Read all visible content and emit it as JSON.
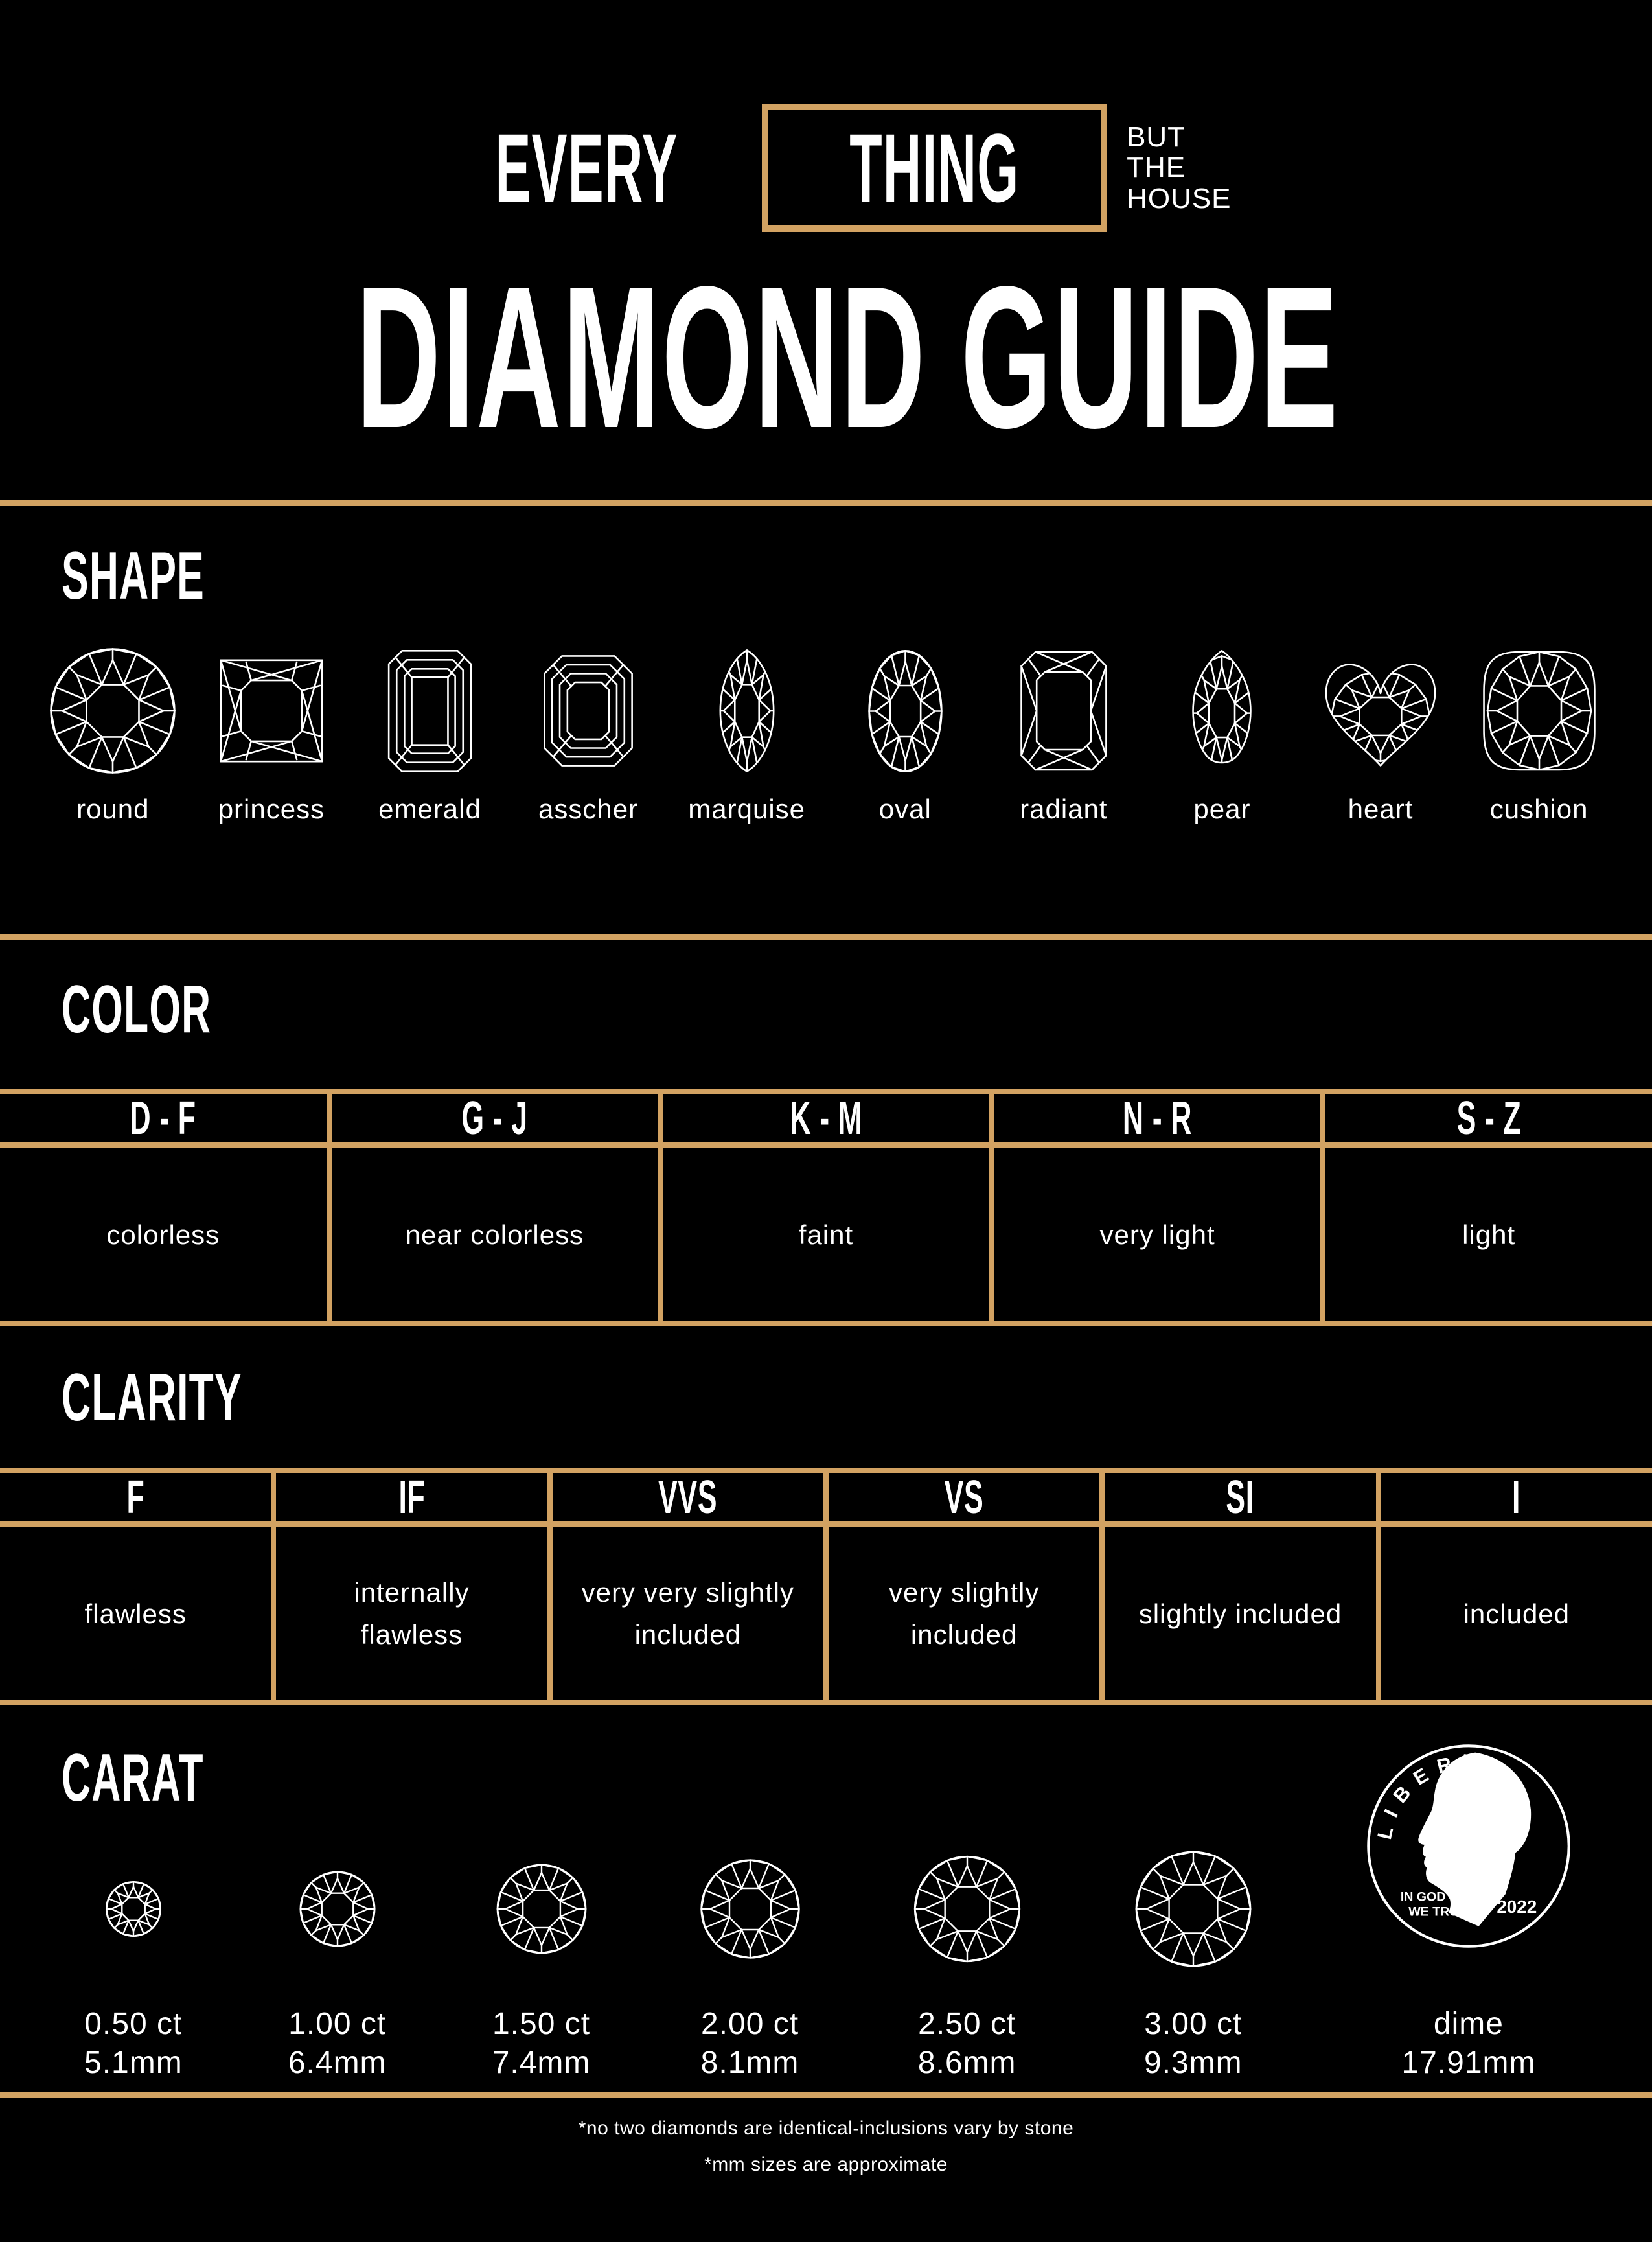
{
  "colors": {
    "background": "#000000",
    "accent": "#D2A262",
    "text": "#FFFFFF"
  },
  "brand": {
    "word1": "EVERY",
    "word2": "THING",
    "tagline": [
      "BUT",
      "THE",
      "HOUSE"
    ]
  },
  "title": "DIAMOND GUIDE",
  "shape": {
    "heading": "SHAPE",
    "items": [
      {
        "shape": "round",
        "label": "round"
      },
      {
        "shape": "princess",
        "label": "princess"
      },
      {
        "shape": "emerald",
        "label": "emerald"
      },
      {
        "shape": "asscher",
        "label": "asscher"
      },
      {
        "shape": "marquise",
        "label": "marquise"
      },
      {
        "shape": "oval",
        "label": "oval"
      },
      {
        "shape": "radiant",
        "label": "radiant"
      },
      {
        "shape": "pear",
        "label": "pear"
      },
      {
        "shape": "heart",
        "label": "heart"
      },
      {
        "shape": "cushion",
        "label": "cushion"
      }
    ]
  },
  "color": {
    "heading": "COLOR",
    "columns": [
      {
        "grade": "D - F",
        "desc": "colorless"
      },
      {
        "grade": "G - J",
        "desc": "near colorless"
      },
      {
        "grade": "K - M",
        "desc": "faint"
      },
      {
        "grade": "N - R",
        "desc": "very light"
      },
      {
        "grade": "S - Z",
        "desc": "light"
      }
    ]
  },
  "clarity": {
    "heading": "CLARITY",
    "columns": [
      {
        "grade": "F",
        "desc": "flawless"
      },
      {
        "grade": "IF",
        "desc": "internally flawless"
      },
      {
        "grade": "VVS",
        "desc": "very very slightly included"
      },
      {
        "grade": "VS",
        "desc": "very slightly included"
      },
      {
        "grade": "SI",
        "desc": "slightly included"
      },
      {
        "grade": "I",
        "desc": "included"
      }
    ]
  },
  "carat": {
    "heading": "CARAT",
    "items": [
      {
        "kind": "diamond",
        "mm_value": 5.1,
        "ct": "0.50 ct",
        "mm": "5.1mm"
      },
      {
        "kind": "diamond",
        "mm_value": 6.4,
        "ct": "1.00 ct",
        "mm": "6.4mm"
      },
      {
        "kind": "diamond",
        "mm_value": 7.4,
        "ct": "1.50 ct",
        "mm": "7.4mm"
      },
      {
        "kind": "diamond",
        "mm_value": 8.1,
        "ct": "2.00 ct",
        "mm": "8.1mm"
      },
      {
        "kind": "diamond",
        "mm_value": 8.6,
        "ct": "2.50 ct",
        "mm": "8.6mm"
      },
      {
        "kind": "diamond",
        "mm_value": 9.3,
        "ct": "3.00 ct",
        "mm": "9.3mm"
      },
      {
        "kind": "dime",
        "mm_value": 17.91,
        "ct": "dime",
        "mm": "17.91mm"
      }
    ]
  },
  "dime_coin": {
    "top_text": "LIBERTY",
    "motto": [
      "IN GOD",
      "WE TRUST"
    ],
    "year": "2022"
  },
  "footnotes": [
    "*no two diamonds are identical-inclusions vary by stone",
    "*mm sizes are approximate"
  ]
}
